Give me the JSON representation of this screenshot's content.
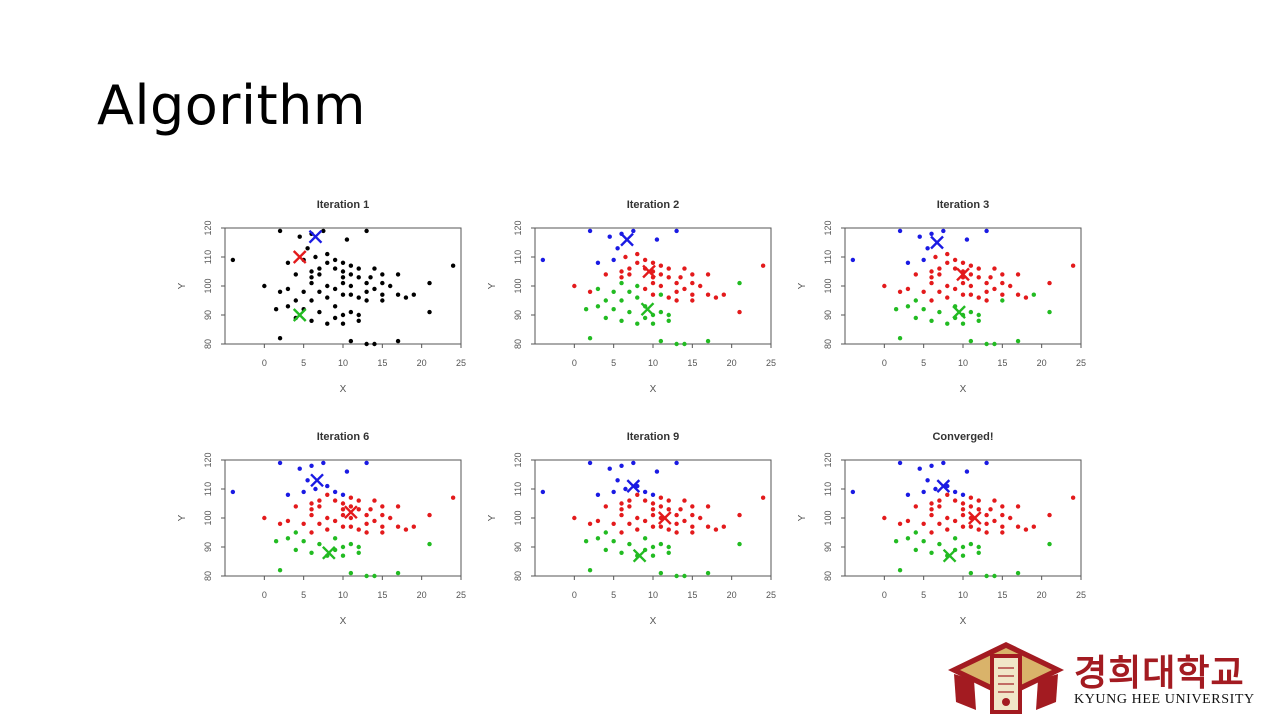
{
  "slide": {
    "title": "Algorithm"
  },
  "colors": {
    "cluster_red": "#e31a1c",
    "cluster_green": "#22bb22",
    "cluster_blue": "#1a1ae3",
    "unassigned": "#000000",
    "logo_red": "#a31b21"
  },
  "logo": {
    "korean": "경희대학교",
    "english": "KYUNG HEE UNIVERSITY",
    "emblem": "kyung-hee-emblem-icon"
  },
  "chart_data": [
    {
      "type": "scatter",
      "title": "Iteration 1",
      "xlabel": "X",
      "ylabel": "Y",
      "xlim": [
        -5,
        25
      ],
      "ylim": [
        80,
        120
      ],
      "grid": false,
      "legend": "none"
    },
    {
      "type": "scatter",
      "title": "Iteration 2",
      "xlabel": "X",
      "ylabel": "Y",
      "xlim": [
        -5,
        25
      ],
      "ylim": [
        80,
        120
      ],
      "grid": false,
      "legend": "none"
    },
    {
      "type": "scatter",
      "title": "Iteration 3",
      "xlabel": "X",
      "ylabel": "Y",
      "xlim": [
        -5,
        25
      ],
      "ylim": [
        80,
        120
      ],
      "grid": false,
      "legend": "none"
    },
    {
      "type": "scatter",
      "title": "Iteration 6",
      "xlabel": "X",
      "ylabel": "Y",
      "xlim": [
        -5,
        25
      ],
      "ylim": [
        80,
        120
      ],
      "grid": false,
      "legend": "none"
    },
    {
      "type": "scatter",
      "title": "Iteration 9",
      "xlabel": "X",
      "ylabel": "Y",
      "xlim": [
        -5,
        25
      ],
      "ylim": [
        80,
        120
      ],
      "grid": false,
      "legend": "none"
    },
    {
      "type": "scatter",
      "title": "Converged!",
      "xlabel": "X",
      "ylabel": "Y",
      "xlim": [
        -5,
        25
      ],
      "ylim": [
        80,
        120
      ],
      "grid": false,
      "legend": "none"
    }
  ],
  "points": [
    [
      -4,
      109
    ],
    [
      2,
      119
    ],
    [
      4.5,
      117
    ],
    [
      6,
      118
    ],
    [
      7.5,
      119
    ],
    [
      5.5,
      113
    ],
    [
      13,
      119
    ],
    [
      10.5,
      116
    ],
    [
      6.5,
      110
    ],
    [
      3,
      108
    ],
    [
      5,
      109
    ],
    [
      8,
      111
    ],
    [
      9,
      109
    ],
    [
      10,
      108
    ],
    [
      11,
      107
    ],
    [
      12,
      106
    ],
    [
      9,
      106
    ],
    [
      6,
      105
    ],
    [
      4,
      104
    ],
    [
      7,
      104
    ],
    [
      10,
      103
    ],
    [
      12,
      103
    ],
    [
      13.5,
      103
    ],
    [
      15,
      104
    ],
    [
      17,
      104
    ],
    [
      13,
      101
    ],
    [
      15,
      101
    ],
    [
      16,
      100
    ],
    [
      14,
      99
    ],
    [
      13,
      98
    ],
    [
      10,
      101
    ],
    [
      11,
      100
    ],
    [
      9,
      99
    ],
    [
      8,
      100
    ],
    [
      6,
      101
    ],
    [
      7,
      98
    ],
    [
      5,
      98
    ],
    [
      3,
      99
    ],
    [
      2,
      98
    ],
    [
      0,
      100
    ],
    [
      11,
      97
    ],
    [
      12,
      96
    ],
    [
      15,
      97
    ],
    [
      17,
      97
    ],
    [
      18,
      96
    ],
    [
      21,
      101
    ],
    [
      24,
      107
    ],
    [
      8,
      96
    ],
    [
      6,
      95
    ],
    [
      4,
      95
    ],
    [
      3,
      93
    ],
    [
      1.5,
      92
    ],
    [
      5,
      92
    ],
    [
      9,
      93
    ],
    [
      7,
      91
    ],
    [
      10,
      90
    ],
    [
      11,
      91
    ],
    [
      9,
      89
    ],
    [
      12,
      90
    ],
    [
      8,
      87
    ],
    [
      6,
      88
    ],
    [
      4,
      89
    ],
    [
      2,
      82
    ],
    [
      10,
      87
    ],
    [
      12,
      88
    ],
    [
      11,
      81
    ],
    [
      13,
      80
    ],
    [
      14,
      80
    ],
    [
      17,
      81
    ],
    [
      21,
      91
    ],
    [
      19,
      97
    ],
    [
      15,
      95
    ],
    [
      7,
      106
    ],
    [
      10,
      105
    ],
    [
      14,
      106
    ],
    [
      11,
      104
    ],
    [
      8,
      108
    ],
    [
      6,
      103
    ],
    [
      10,
      97
    ],
    [
      13,
      95
    ]
  ],
  "assign": [
    "bbbbbrbrbbbrrrrrrrrrrrrrrrrrrrrrrrrrrrrrrrrrrrrrrrrrrrrrrrrrrrrrrrrrrrrrrrrrrrrrr",
    "bbbbbbbbrbbrrrrrrrrrrrrrrrrrrrrrrgggggrrgrrrrgrggggggggggggggggggggggrrrrrrrrrrrgg",
    "bbbbbbbbrbbrrrrrrrrrrrrrrrrrrrrrrrrrrrrrrrrrrrrrrgggggggggggggggggggggggrrrrrrrrgg",
    "bbbbbbbbbbbbbbrrrrrrrrrrrrrrrrrrrrrrrrrrrrrrrrrrrgggggggggggggggggggggrrrrrrrrrrrrg",
    "bbbbbbbbbbbbbbrrrrrrrrrrrrrrrrrrrrrrrrrrrrrrrrrrrgggggggggggggggggggggrrrrrrrrrrrrg",
    "bbbbbbbbbbbbbbrrrrrrrrrrrrrrrrrrrrrrrrrrrrrrrrrrrgggggggggggggggggggggrrrrrrrrrrrrg"
  ],
  "centroids": [
    {
      "blue": [
        6.5,
        117
      ],
      "red": [
        4.5,
        110
      ],
      "green": [
        4.5,
        90
      ]
    },
    {
      "blue": [
        6.7,
        116
      ],
      "red": [
        9.5,
        105
      ],
      "green": [
        9.3,
        92
      ]
    },
    {
      "blue": [
        6.7,
        115
      ],
      "red": [
        10,
        104
      ],
      "green": [
        9.5,
        91
      ]
    },
    {
      "blue": [
        6.7,
        113
      ],
      "red": [
        11,
        102
      ],
      "green": [
        8.2,
        88
      ]
    },
    {
      "blue": [
        7.5,
        111
      ],
      "red": [
        11.5,
        100
      ],
      "green": [
        8.3,
        87
      ]
    },
    {
      "blue": [
        7.5,
        111
      ],
      "red": [
        11.5,
        100
      ],
      "green": [
        8.3,
        87
      ]
    }
  ]
}
